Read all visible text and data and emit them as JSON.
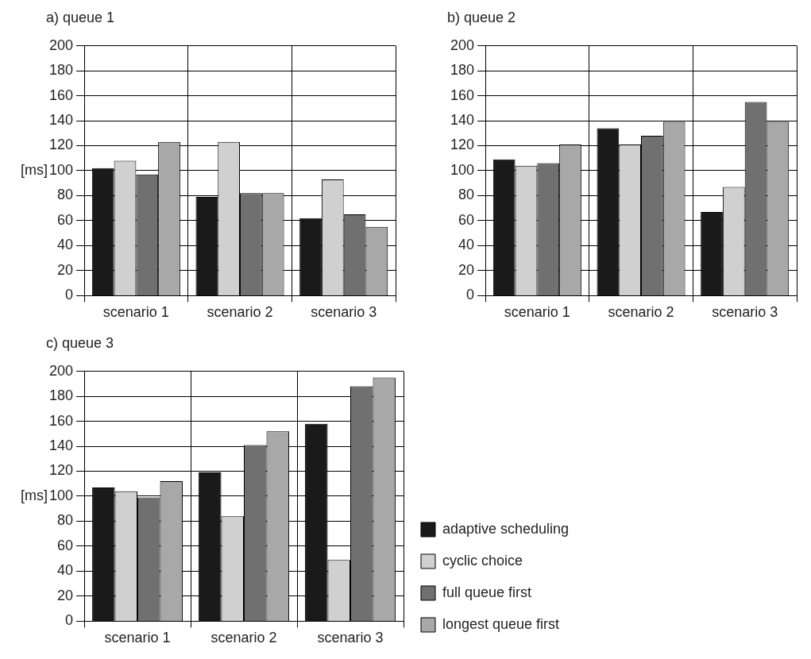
{
  "chart_data": [
    {
      "type": "bar",
      "title": "a) queue 1",
      "ylabel": "[ms]",
      "categories": [
        "scenario 1",
        "scenario 2",
        "scenario 3"
      ],
      "ylim": [
        0,
        200
      ],
      "yticks": [
        0,
        20,
        40,
        60,
        80,
        100,
        120,
        140,
        160,
        180,
        200
      ],
      "grid": true,
      "series": [
        {
          "color": "#1a1a1a",
          "values": [
            102,
            79,
            62
          ]
        },
        {
          "color": "#d0d0d0",
          "values": [
            108,
            123,
            93
          ]
        },
        {
          "color": "#707070",
          "values": [
            97,
            82,
            65
          ]
        },
        {
          "color": "#a8a8a8",
          "values": [
            123,
            82,
            55
          ]
        }
      ]
    },
    {
      "type": "bar",
      "title": "b) queue 2",
      "categories": [
        "scenario 1",
        "scenario 2",
        "scenario 3"
      ],
      "ylim": [
        0,
        200
      ],
      "yticks": [
        0,
        20,
        40,
        60,
        80,
        100,
        120,
        140,
        160,
        180,
        200
      ],
      "grid": true,
      "series": [
        {
          "color": "#1a1a1a",
          "values": [
            109,
            134,
            67
          ]
        },
        {
          "color": "#d0d0d0",
          "values": [
            104,
            121,
            87
          ]
        },
        {
          "color": "#707070",
          "values": [
            106,
            128,
            155
          ]
        },
        {
          "color": "#a8a8a8",
          "values": [
            121,
            139,
            139
          ]
        }
      ]
    },
    {
      "type": "bar",
      "title": "c) queue 3",
      "ylabel": "[ms]",
      "categories": [
        "scenario 1",
        "scenario 2",
        "scenario 3"
      ],
      "ylim": [
        0,
        200
      ],
      "yticks": [
        0,
        20,
        40,
        60,
        80,
        100,
        120,
        140,
        160,
        180,
        200
      ],
      "grid": true,
      "legend": "right",
      "series": [
        {
          "name": "adaptive scheduling",
          "color": "#1a1a1a",
          "values": [
            107,
            119,
            158
          ]
        },
        {
          "name": "cyclic choice",
          "color": "#d0d0d0",
          "values": [
            104,
            84,
            49
          ]
        },
        {
          "name": "full queue first",
          "color": "#707070",
          "values": [
            99,
            141,
            188
          ]
        },
        {
          "name": "longest queue first",
          "color": "#a8a8a8",
          "values": [
            112,
            152,
            195
          ]
        }
      ]
    }
  ]
}
